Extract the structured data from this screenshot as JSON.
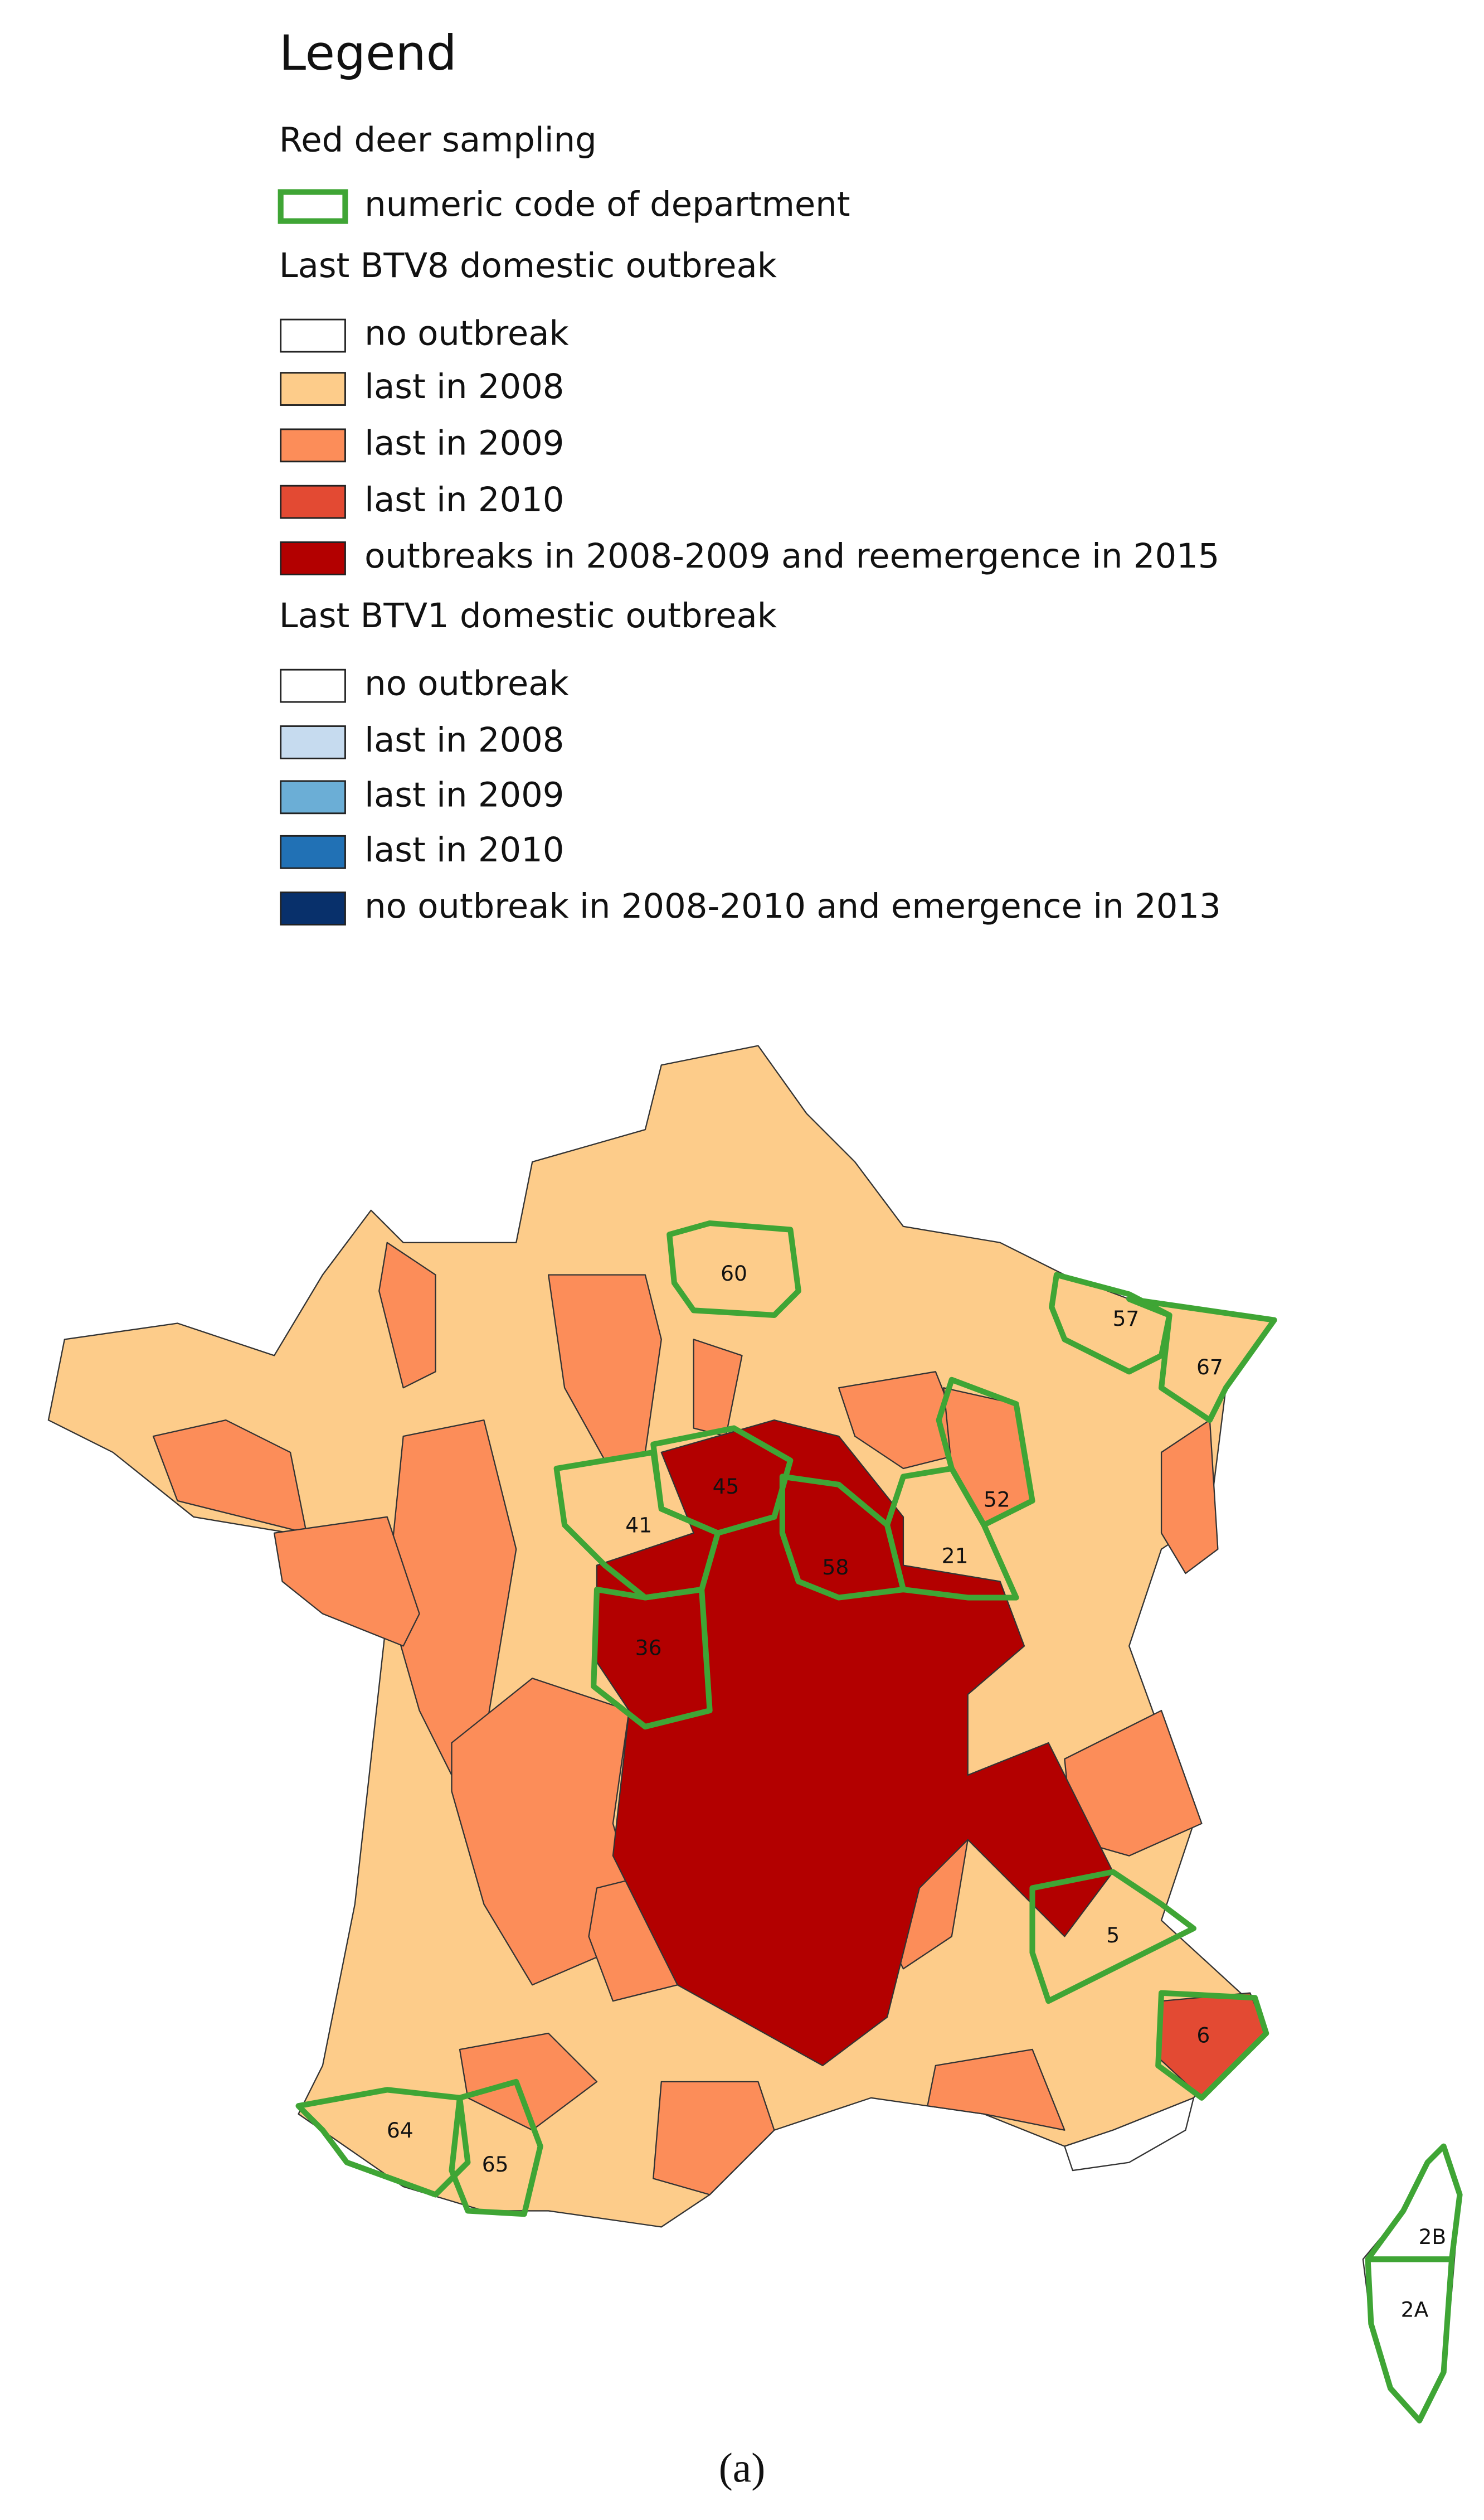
{
  "legend": {
    "title": "Legend",
    "groups": [
      {
        "title": "Red deer sampling",
        "items": [
          {
            "label": "numeric code of department",
            "color": "#3fa535",
            "outline": true
          }
        ]
      },
      {
        "title": "Last BTV8 domestic outbreak",
        "items": [
          {
            "label": "no outbreak",
            "color": "#ffffff"
          },
          {
            "label": "last in 2008",
            "color": "#fdcc8a"
          },
          {
            "label": "last in 2009",
            "color": "#fc8d59"
          },
          {
            "label": "last in 2010",
            "color": "#e34a33"
          },
          {
            "label": "outbreaks in 2008-2009 and reemergence in 2015",
            "color": "#b30000"
          }
        ]
      },
      {
        "title": "Last BTV1 domestic outbreak",
        "items": [
          {
            "label": "no outbreak",
            "color": "#ffffff"
          },
          {
            "label": "last in 2008",
            "color": "#c6dbef"
          },
          {
            "label": "last in 2009",
            "color": "#6baed6"
          },
          {
            "label": "last in 2010",
            "color": "#2171b5"
          },
          {
            "label": "no outbreak in 2008-2010 and emergence in 2013",
            "color": "#08306b"
          }
        ]
      }
    ]
  },
  "departments": [
    {
      "label": "60"
    },
    {
      "label": "57"
    },
    {
      "label": "67"
    },
    {
      "label": "52"
    },
    {
      "label": "21"
    },
    {
      "label": "45"
    },
    {
      "label": "58"
    },
    {
      "label": "41"
    },
    {
      "label": "36"
    },
    {
      "label": "5"
    },
    {
      "label": "6"
    },
    {
      "label": "64"
    },
    {
      "label": "65"
    },
    {
      "label": "2B"
    },
    {
      "label": "2A"
    }
  ],
  "caption": "(a)"
}
